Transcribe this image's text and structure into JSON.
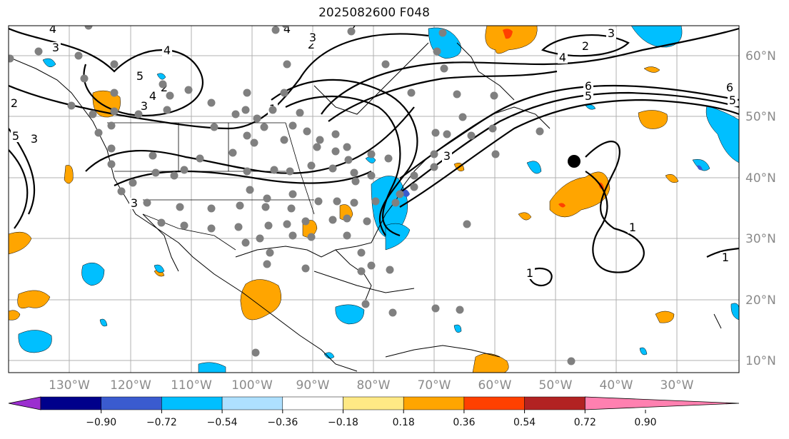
{
  "title": "2025082600 F048",
  "map": {
    "lat_labels": [
      "60°N",
      "50°N",
      "40°N",
      "30°N",
      "20°N",
      "10°N"
    ],
    "lon_labels": [
      "130°W",
      "120°W",
      "110°W",
      "100°W",
      "90°W",
      "80°W",
      "70°W",
      "60°W",
      "50°W",
      "40°W",
      "30°W"
    ],
    "contour_labels": [
      "4",
      "3",
      "2",
      "5",
      "4",
      "3",
      "2",
      "5",
      "3",
      "4",
      "3",
      "4",
      "2",
      "3",
      "2",
      "1",
      "6",
      "5",
      "4",
      "3",
      "2",
      "1",
      "1",
      "1",
      "3",
      "6",
      "5"
    ]
  },
  "colorbar": {
    "ticks": [
      "−0.90",
      "−0.72",
      "−0.54",
      "−0.36",
      "−0.18",
      "0.18",
      "0.36",
      "0.54",
      "0.72",
      "0.90"
    ],
    "colors": [
      "#9b2fcf",
      "#00008b",
      "#3a5bcf",
      "#00bfff",
      "#aee0ff",
      "#ffffff",
      "#ffe985",
      "#ffa500",
      "#ff4000",
      "#b22222",
      "#ff80b0"
    ]
  },
  "colors": {
    "positive_fill": "#ffa500",
    "strong_positive_fill": "#ff4000",
    "negative_fill": "#00bfff",
    "strong_negative_fill": "#3a5bcf",
    "station_dot": "#808080",
    "storm_marker": "#000000"
  }
}
